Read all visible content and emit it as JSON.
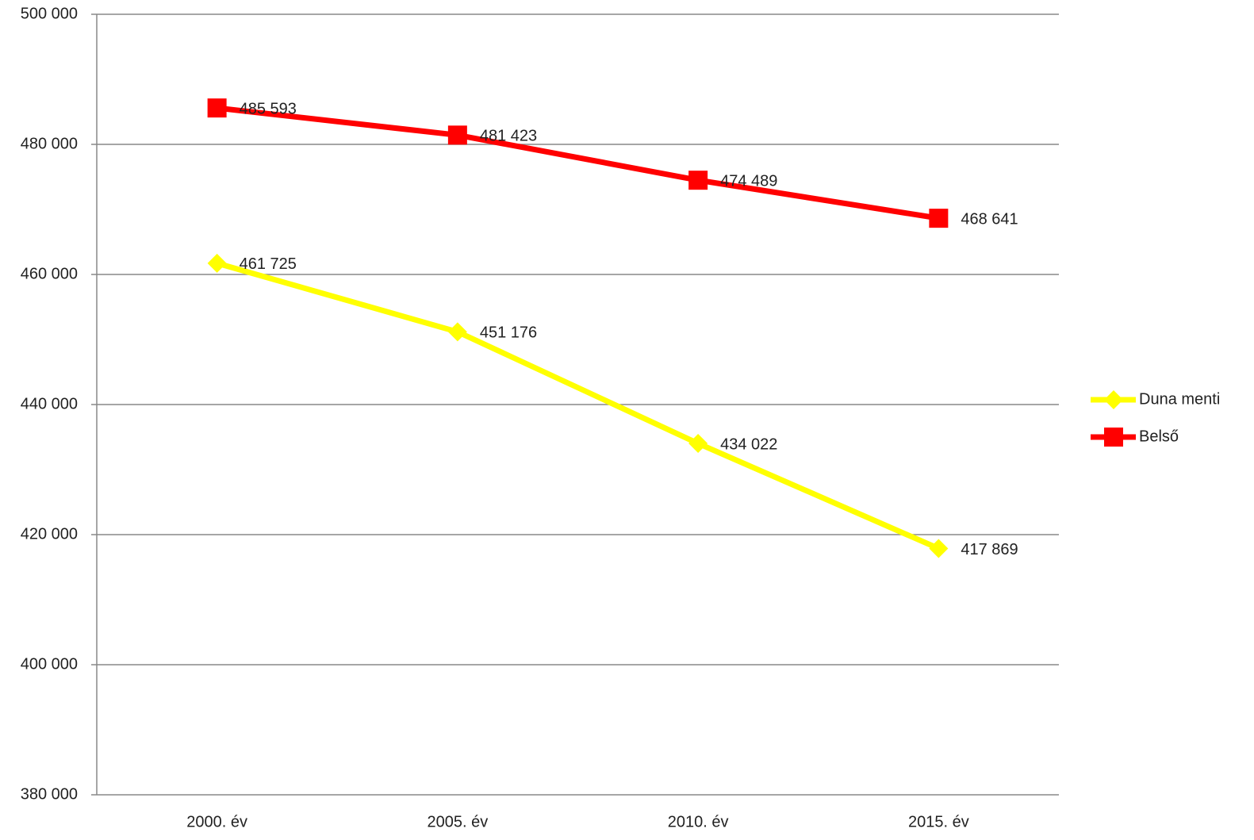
{
  "chart_data": {
    "type": "line",
    "categories": [
      "2000. év",
      "2005. év",
      "2010. év",
      "2015. év"
    ],
    "series": [
      {
        "name": "Duna menti",
        "color": "#ffff00",
        "marker": "diamond",
        "values": [
          461725,
          451176,
          434022,
          417869
        ],
        "value_labels": [
          "461 725",
          "451 176",
          "434 022",
          "417 869"
        ]
      },
      {
        "name": "Belső",
        "color": "#ff0000",
        "marker": "square",
        "values": [
          485593,
          481423,
          474489,
          468641
        ],
        "value_labels": [
          "485 593",
          "481 423",
          "474 489",
          "468 641"
        ]
      }
    ],
    "ylim": [
      380000,
      500000
    ],
    "yticks": [
      {
        "value": 380000,
        "label": "380 000"
      },
      {
        "value": 400000,
        "label": "400 000"
      },
      {
        "value": 420000,
        "label": "420 000"
      },
      {
        "value": 440000,
        "label": "440 000"
      },
      {
        "value": 460000,
        "label": "460 000"
      },
      {
        "value": 480000,
        "label": "480 000"
      },
      {
        "value": 500000,
        "label": "500 000"
      }
    ],
    "grid": true,
    "legend": "right"
  }
}
